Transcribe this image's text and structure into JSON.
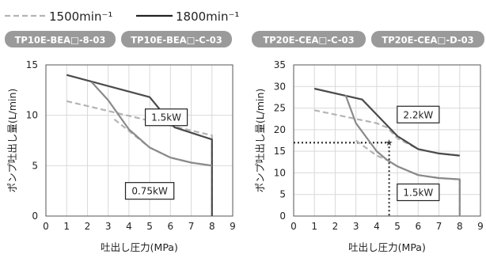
{
  "legend": {
    "dashed_label": "1500min⁻¹",
    "solid_label": "1800min⁻¹"
  },
  "colors": {
    "line_1500": "#b4b4b4",
    "line_1800": "#4a4a4a",
    "gray_1800": "#8a8a8a",
    "badge_fill": "#9a9a9a",
    "marker": "#333333"
  },
  "chart_data": [
    {
      "type": "line",
      "badges": [
        "TP10E-BEA□-8-03",
        "TP10E-BEA□-C-03"
      ],
      "xlabel": "吐出し圧力(MPa)",
      "ylabel": "ポンプ吐出し量(L/min)",
      "xlim": [
        0,
        9
      ],
      "ylim": [
        0,
        15
      ],
      "xticks": [
        0,
        1,
        2,
        3,
        4,
        5,
        6,
        7,
        8,
        9
      ],
      "yticks": [
        0,
        5,
        10,
        15
      ],
      "grid": true,
      "series": [
        {
          "name": "1500min⁻¹",
          "style": "dashed",
          "power": "1.5kW",
          "x": [
            1,
            8,
            8
          ],
          "y": [
            11.4,
            8.0,
            0
          ]
        },
        {
          "name": "1800min⁻¹",
          "style": "solid",
          "power": "1.5kW",
          "x": [
            1,
            5,
            6.2,
            8,
            8
          ],
          "y": [
            14.0,
            11.8,
            8.8,
            7.6,
            0
          ]
        },
        {
          "name": "1500min⁻¹",
          "style": "dashed",
          "power": "0.75kW",
          "x": [
            3.3,
            5,
            6,
            7,
            8
          ],
          "y": [
            9.6,
            6.8,
            5.8,
            5.3,
            5.0
          ]
        },
        {
          "name": "1800min⁻¹",
          "style": "solid",
          "power": "0.75kW",
          "x": [
            2.2,
            3,
            4,
            5,
            6,
            7,
            8
          ],
          "y": [
            13.3,
            11.5,
            8.6,
            6.8,
            5.8,
            5.3,
            5.0
          ]
        }
      ],
      "annotations": [
        {
          "text": "1.5kW",
          "x": 5.8,
          "y": 9.8
        },
        {
          "text": "0.75kW",
          "x": 5.0,
          "y": 2.5
        }
      ]
    },
    {
      "type": "line",
      "badges": [
        "TP20E-CEA□-C-03",
        "TP20E-CEA□-D-03"
      ],
      "xlabel": "吐出し圧力(MPa)",
      "ylabel": "ポンプ吐出し量(L/min)",
      "xlim": [
        0,
        9
      ],
      "ylim": [
        0,
        35
      ],
      "xticks": [
        0,
        1,
        2,
        3,
        4,
        5,
        6,
        7,
        8,
        9
      ],
      "yticks": [
        0,
        5,
        10,
        15,
        20,
        25,
        30,
        35
      ],
      "grid": true,
      "series": [
        {
          "name": "1500min⁻¹",
          "style": "dashed",
          "power": "2.2kW",
          "x": [
            1,
            4,
            4.5,
            5,
            6,
            7,
            8
          ],
          "y": [
            24.5,
            21.5,
            20.5,
            18.0,
            15.5,
            14.5,
            14.0
          ]
        },
        {
          "name": "1800min⁻¹",
          "style": "solid",
          "power": "2.2kW",
          "x": [
            1,
            3.3,
            5,
            6,
            7,
            8
          ],
          "y": [
            29.5,
            27.0,
            18.5,
            15.5,
            14.5,
            14.0
          ]
        },
        {
          "name": "1500min⁻¹",
          "style": "dashed",
          "power": "1.5kW",
          "x": [
            3,
            4,
            4.5,
            5,
            6,
            7,
            8,
            8
          ],
          "y": [
            17.5,
            14.0,
            13.0,
            11.5,
            9.5,
            8.8,
            8.5,
            0
          ]
        },
        {
          "name": "1800min⁻¹",
          "style": "solid",
          "power": "1.5kW",
          "x": [
            2.5,
            3,
            4,
            4.5,
            5,
            6,
            7,
            8,
            8
          ],
          "y": [
            28.0,
            21.5,
            15.0,
            13.0,
            11.5,
            9.5,
            8.8,
            8.5,
            0
          ]
        }
      ],
      "marker": {
        "x": 4.6,
        "y": 17
      },
      "annotations": [
        {
          "text": "2.2kW",
          "x": 6.0,
          "y": 23.5
        },
        {
          "text": "1.5kW",
          "x": 6.0,
          "y": 5.5
        }
      ]
    }
  ]
}
